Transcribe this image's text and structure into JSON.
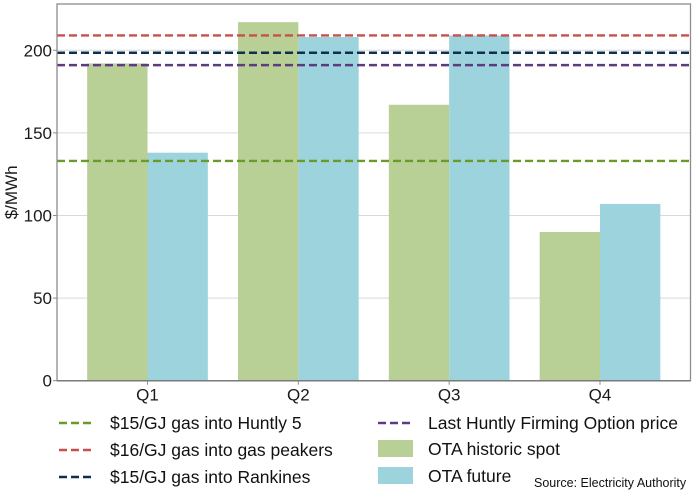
{
  "chart_data": {
    "type": "bar",
    "title": "",
    "xlabel": "",
    "ylabel": "$/MWh",
    "ylim": [
      0,
      228
    ],
    "yticks": [
      0,
      50,
      100,
      150,
      200
    ],
    "ytick_labels": [
      "0",
      "50",
      "100",
      "150",
      "200"
    ],
    "grid": true,
    "categories": [
      "Q1",
      "Q2",
      "Q3",
      "Q4"
    ],
    "series": [
      {
        "name": "OTA historic spot",
        "values": [
          192,
          217,
          167,
          90
        ],
        "color": "#b8cf95"
      },
      {
        "name": "OTA future",
        "values": [
          138,
          208,
          209,
          107
        ],
        "color": "#9cd3dc"
      }
    ],
    "reference_lines": [
      {
        "name": "$15/GJ gas into Huntly 5",
        "value": 133,
        "color": "#6a9a2a",
        "style": "dashed"
      },
      {
        "name": "$16/GJ gas into gas peakers",
        "value": 209,
        "color": "#c9504a",
        "style": "dashed"
      },
      {
        "name": "$15/GJ gas into Rankines",
        "value": 198.5,
        "color": "#0e2f4e",
        "style": "dashed"
      },
      {
        "name": "Last Huntly Firming Option price",
        "value": 191,
        "color": "#5e3b80",
        "style": "dashed"
      }
    ],
    "legend": {
      "placement": "bottom",
      "entries": [
        {
          "label": "$15/GJ gas into Huntly 5",
          "kind": "dashed-line",
          "color": "#6a9a2a"
        },
        {
          "label": "$16/GJ gas into gas peakers",
          "kind": "dashed-line",
          "color": "#c9504a"
        },
        {
          "label": "$15/GJ gas into Rankines",
          "kind": "dashed-line",
          "color": "#0e2f4e"
        },
        {
          "label": "Last Huntly Firming Option price",
          "kind": "dashed-line",
          "color": "#5e3b80"
        },
        {
          "label": "OTA historic spot",
          "kind": "fill",
          "color": "#b8cf95"
        },
        {
          "label": "OTA future",
          "kind": "fill",
          "color": "#9cd3dc"
        }
      ]
    },
    "source_note": "Source: Electricity Authority"
  }
}
